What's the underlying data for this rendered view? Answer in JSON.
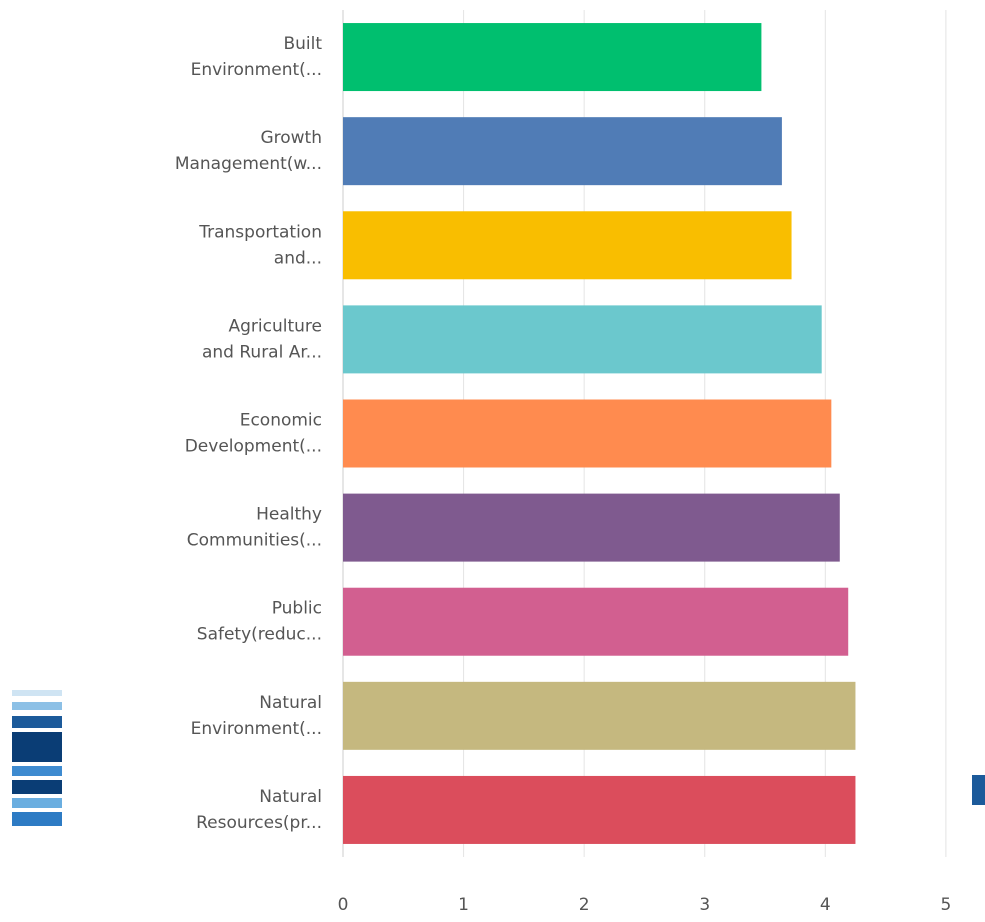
{
  "chart_data": {
    "type": "hbar",
    "categories": [
      "Built Environment(...",
      "Growth Management(w...",
      "Transportation and...",
      "Agriculture and Rural Ar...",
      "Economic Development(...",
      "Healthy Communities(...",
      "Public Safety(reduc...",
      "Natural Environment(...",
      "Natural Resources(pr..."
    ],
    "values": [
      3.47,
      3.64,
      3.72,
      3.97,
      4.05,
      4.12,
      4.19,
      4.25,
      4.25
    ],
    "colors": [
      "#00bf6f",
      "#507cb6",
      "#f9be00",
      "#6bc8cd",
      "#ff8b4f",
      "#7f5a8f",
      "#d25f90",
      "#c5b87f",
      "#db4d5c"
    ],
    "xlim": [
      0,
      5.2
    ],
    "xticks": [
      0,
      1,
      2,
      3,
      4,
      5
    ],
    "grid": true
  }
}
